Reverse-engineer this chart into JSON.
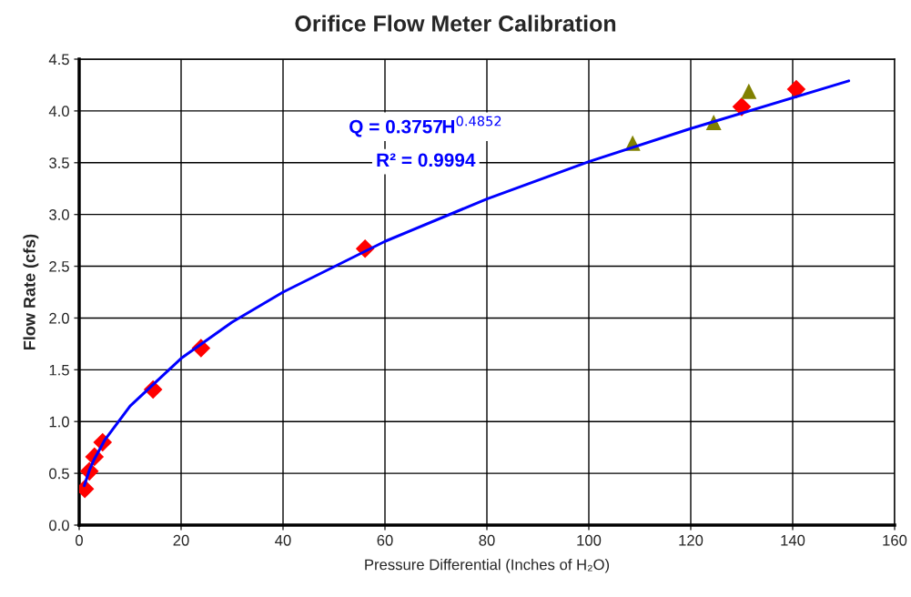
{
  "chart_data": {
    "type": "scatter",
    "title": "Orifice Flow Meter Calibration",
    "xlabel": "Pressure Differential (Inches of H₂O)",
    "ylabel": "Flow Rate (cfs)",
    "xlim": [
      0,
      160
    ],
    "xticks": [
      0,
      20,
      40,
      60,
      80,
      100,
      120,
      140,
      160
    ],
    "ylim": [
      0,
      4.5
    ],
    "yticks": [
      {
        "value": 0,
        "label": "0.0"
      },
      {
        "value": 0.5,
        "label": "0.5"
      },
      {
        "value": 1,
        "label": "1.0"
      },
      {
        "value": 1.5,
        "label": "1.5"
      },
      {
        "value": 2,
        "label": "2.0"
      },
      {
        "value": 2.5,
        "label": "2.5"
      },
      {
        "value": 3,
        "label": "3.0"
      },
      {
        "value": 3.5,
        "label": "3.5"
      },
      {
        "value": 4,
        "label": "4.0"
      },
      {
        "value": 4.5,
        "label": "4.5"
      }
    ],
    "grid": true,
    "legend": false,
    "annotations": [
      "Q = 0.3757H$^{0.4852}$",
      "R² = 0.9994"
    ],
    "series": [
      {
        "marker": "diamond",
        "color": "#ff0000",
        "x": [
          1.1,
          2.0,
          3.0,
          4.6,
          14.5,
          23.9,
          56.1,
          130.0,
          140.7
        ],
        "values": [
          0.35,
          0.52,
          0.66,
          0.8,
          1.31,
          1.71,
          2.67,
          4.04,
          4.21
        ]
      },
      {
        "marker": "triangle",
        "color": "#808000",
        "x": [
          108.6,
          124.5,
          131.4
        ],
        "values": [
          3.69,
          3.89,
          4.19
        ]
      },
      {
        "type": "line",
        "marker": "none",
        "color": "#0000ff",
        "x": [
          1,
          2,
          3,
          5,
          10,
          20,
          30,
          40,
          60,
          80,
          100,
          120,
          151
        ],
        "values": [
          0.38,
          0.53,
          0.64,
          0.82,
          1.15,
          1.61,
          1.96,
          2.25,
          2.74,
          3.15,
          3.51,
          3.83,
          4.29
        ]
      }
    ]
  }
}
